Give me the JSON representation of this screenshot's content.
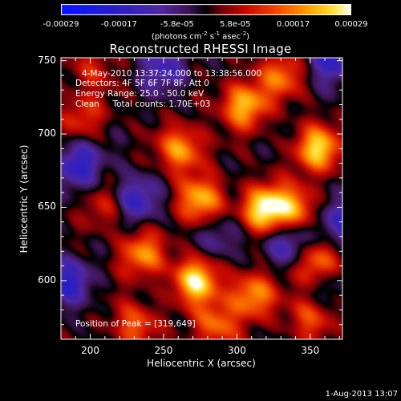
{
  "chart_data": {
    "type": "heatmap",
    "title": "Reconstructed RHESSI Image",
    "xlabel": "Heliocentric X (arcsec)",
    "ylabel": "Heliocentric Y (arcsec)",
    "xlim": [
      180,
      372
    ],
    "ylim": [
      560,
      752
    ],
    "xticks": [
      "200",
      "250",
      "300",
      "350"
    ],
    "xtick_values": [
      200,
      250,
      300,
      350
    ],
    "yticks": [
      "750",
      "700",
      "650",
      "600"
    ],
    "ytick_values": [
      750,
      700,
      650,
      600
    ],
    "colorbar": {
      "ticks": [
        "-0.00029",
        "-0.00017",
        "-5.8e-05",
        "5.8e-05",
        "0.00017",
        "0.00029"
      ],
      "min": -0.00029,
      "max": 0.00029,
      "units_text": "(photons cm",
      "units_exp1": "-2",
      "units_mid": " s",
      "units_exp2": "-1",
      "units_mid2": " asec",
      "units_exp3": "-2",
      "units_end": ")"
    },
    "annotations": {
      "time": "4-May-2010 13:37:24.000 to 13:38:56.000",
      "detectors": "Detectors: 4F 5F 6F 7F 8F, Att 0",
      "energy": "Energy Range: 25.0 - 50.0 keV",
      "clean": "Clean     Total counts: 1.70E+03",
      "peak": "Position of Peak = [319,649]"
    },
    "sources": [
      {
        "x": 319,
        "y": 649,
        "value": 1.0
      },
      {
        "x": 305,
        "y": 720,
        "value": 0.8
      },
      {
        "x": 355,
        "y": 690,
        "value": 0.85
      },
      {
        "x": 262,
        "y": 690,
        "value": 0.7
      },
      {
        "x": 275,
        "y": 655,
        "value": 0.75
      },
      {
        "x": 235,
        "y": 618,
        "value": 0.65
      },
      {
        "x": 272,
        "y": 600,
        "value": 0.9
      },
      {
        "x": 310,
        "y": 590,
        "value": 0.7
      },
      {
        "x": 355,
        "y": 610,
        "value": 0.75
      },
      {
        "x": 340,
        "y": 650,
        "value": 0.6
      },
      {
        "x": 230,
        "y": 570,
        "value": 0.5
      },
      {
        "x": 195,
        "y": 712,
        "value": 0.4
      },
      {
        "x": 330,
        "y": 740,
        "value": 0.55
      },
      {
        "x": 210,
        "y": 650,
        "value": 0.35
      },
      {
        "x": 200,
        "y": 745,
        "value": 0.3
      },
      {
        "x": 350,
        "y": 575,
        "value": 0.45
      },
      {
        "x": 285,
        "y": 570,
        "value": 0.55
      }
    ],
    "negative_sources": [
      {
        "x": 192,
        "y": 680,
        "value": 0.6
      },
      {
        "x": 230,
        "y": 655,
        "value": 0.55
      },
      {
        "x": 370,
        "y": 640,
        "value": 0.5
      },
      {
        "x": 250,
        "y": 745,
        "value": 0.45
      },
      {
        "x": 185,
        "y": 600,
        "value": 0.55
      },
      {
        "x": 335,
        "y": 625,
        "value": 0.45
      },
      {
        "x": 365,
        "y": 752,
        "value": 0.6
      },
      {
        "x": 290,
        "y": 630,
        "value": 0.3
      },
      {
        "x": 360,
        "y": 600,
        "value": 0.35
      }
    ]
  },
  "footer": {
    "timestamp": "1-Aug-2013 13:07"
  }
}
